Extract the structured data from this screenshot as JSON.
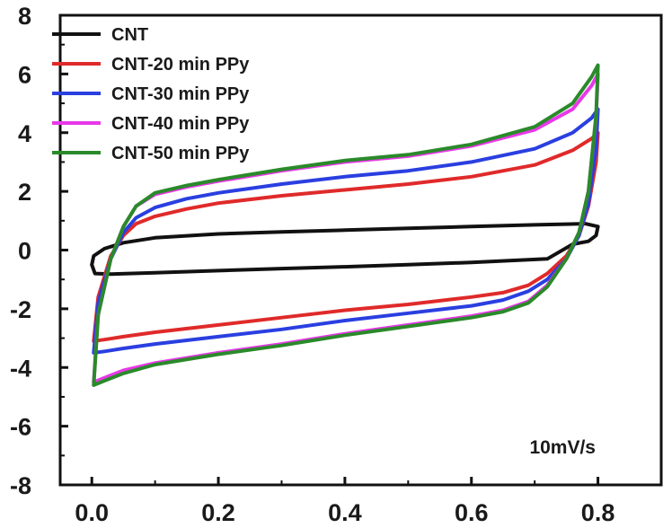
{
  "chart_data": {
    "type": "line",
    "title": "",
    "xlabel": "",
    "ylabel": "",
    "xlim": [
      -0.05,
      0.9
    ],
    "ylim": [
      -8,
      8
    ],
    "x_ticks": [
      "0.0",
      "0.2",
      "0.4",
      "0.6",
      "0.8"
    ],
    "x_tick_values": [
      0.0,
      0.2,
      0.4,
      0.6,
      0.8
    ],
    "y_ticks": [
      "8",
      "6",
      "4",
      "2",
      "0",
      "-2",
      "-4",
      "-6",
      "-8"
    ],
    "y_tick_values": [
      8,
      6,
      4,
      2,
      0,
      -2,
      -4,
      -6,
      -8
    ],
    "grid": false,
    "legend_position": "top-left",
    "annotation": "10mV/s",
    "series": [
      {
        "name": "CNT",
        "color": "#111111",
        "points": [
          [
            0.0,
            -0.5
          ],
          [
            0.003,
            -0.2
          ],
          [
            0.02,
            0.05
          ],
          [
            0.05,
            0.25
          ],
          [
            0.1,
            0.42
          ],
          [
            0.2,
            0.55
          ],
          [
            0.3,
            0.62
          ],
          [
            0.4,
            0.68
          ],
          [
            0.5,
            0.74
          ],
          [
            0.6,
            0.8
          ],
          [
            0.7,
            0.86
          ],
          [
            0.78,
            0.9
          ],
          [
            0.8,
            0.8
          ],
          [
            0.797,
            0.5
          ],
          [
            0.785,
            0.3
          ],
          [
            0.76,
            0.2
          ],
          [
            0.72,
            -0.3
          ],
          [
            0.6,
            -0.42
          ],
          [
            0.5,
            -0.5
          ],
          [
            0.4,
            -0.57
          ],
          [
            0.3,
            -0.63
          ],
          [
            0.2,
            -0.7
          ],
          [
            0.1,
            -0.77
          ],
          [
            0.03,
            -0.82
          ],
          [
            0.005,
            -0.8
          ],
          [
            0.0,
            -0.5
          ]
        ]
      },
      {
        "name": "CNT-20 min PPy",
        "color": "#e02a2a",
        "points": [
          [
            0.003,
            -3.1
          ],
          [
            0.01,
            -1.6
          ],
          [
            0.03,
            -0.2
          ],
          [
            0.05,
            0.5
          ],
          [
            0.07,
            0.9
          ],
          [
            0.1,
            1.15
          ],
          [
            0.15,
            1.4
          ],
          [
            0.2,
            1.6
          ],
          [
            0.3,
            1.85
          ],
          [
            0.4,
            2.05
          ],
          [
            0.5,
            2.25
          ],
          [
            0.6,
            2.5
          ],
          [
            0.7,
            2.9
          ],
          [
            0.76,
            3.4
          ],
          [
            0.79,
            3.8
          ],
          [
            0.8,
            4.0
          ],
          [
            0.797,
            3.0
          ],
          [
            0.785,
            1.5
          ],
          [
            0.77,
            0.5
          ],
          [
            0.75,
            -0.2
          ],
          [
            0.72,
            -0.8
          ],
          [
            0.69,
            -1.2
          ],
          [
            0.65,
            -1.45
          ],
          [
            0.6,
            -1.6
          ],
          [
            0.5,
            -1.85
          ],
          [
            0.4,
            -2.05
          ],
          [
            0.3,
            -2.3
          ],
          [
            0.2,
            -2.55
          ],
          [
            0.1,
            -2.8
          ],
          [
            0.05,
            -2.95
          ],
          [
            0.02,
            -3.05
          ],
          [
            0.003,
            -3.1
          ]
        ]
      },
      {
        "name": "CNT-30 min PPy",
        "color": "#2a3fe0",
        "points": [
          [
            0.003,
            -3.5
          ],
          [
            0.01,
            -1.8
          ],
          [
            0.03,
            -0.3
          ],
          [
            0.05,
            0.6
          ],
          [
            0.07,
            1.1
          ],
          [
            0.1,
            1.45
          ],
          [
            0.15,
            1.75
          ],
          [
            0.2,
            1.95
          ],
          [
            0.3,
            2.25
          ],
          [
            0.4,
            2.5
          ],
          [
            0.5,
            2.7
          ],
          [
            0.6,
            3.0
          ],
          [
            0.7,
            3.45
          ],
          [
            0.76,
            4.0
          ],
          [
            0.79,
            4.5
          ],
          [
            0.8,
            4.8
          ],
          [
            0.797,
            3.5
          ],
          [
            0.785,
            1.6
          ],
          [
            0.77,
            0.5
          ],
          [
            0.75,
            -0.3
          ],
          [
            0.72,
            -1.0
          ],
          [
            0.69,
            -1.4
          ],
          [
            0.65,
            -1.7
          ],
          [
            0.6,
            -1.9
          ],
          [
            0.5,
            -2.15
          ],
          [
            0.4,
            -2.4
          ],
          [
            0.3,
            -2.7
          ],
          [
            0.2,
            -2.95
          ],
          [
            0.1,
            -3.2
          ],
          [
            0.05,
            -3.35
          ],
          [
            0.02,
            -3.45
          ],
          [
            0.003,
            -3.5
          ]
        ]
      },
      {
        "name": "CNT-40 min PPy",
        "color": "#e838e8",
        "points": [
          [
            0.003,
            -4.5
          ],
          [
            0.01,
            -2.2
          ],
          [
            0.03,
            -0.3
          ],
          [
            0.05,
            0.8
          ],
          [
            0.07,
            1.5
          ],
          [
            0.1,
            1.9
          ],
          [
            0.15,
            2.15
          ],
          [
            0.2,
            2.35
          ],
          [
            0.3,
            2.7
          ],
          [
            0.4,
            3.0
          ],
          [
            0.5,
            3.2
          ],
          [
            0.6,
            3.55
          ],
          [
            0.7,
            4.1
          ],
          [
            0.76,
            4.8
          ],
          [
            0.79,
            5.6
          ],
          [
            0.8,
            6.0
          ],
          [
            0.797,
            4.5
          ],
          [
            0.785,
            2.0
          ],
          [
            0.77,
            0.6
          ],
          [
            0.75,
            -0.3
          ],
          [
            0.72,
            -1.2
          ],
          [
            0.69,
            -1.75
          ],
          [
            0.65,
            -2.05
          ],
          [
            0.6,
            -2.25
          ],
          [
            0.5,
            -2.55
          ],
          [
            0.4,
            -2.85
          ],
          [
            0.3,
            -3.2
          ],
          [
            0.2,
            -3.5
          ],
          [
            0.1,
            -3.85
          ],
          [
            0.05,
            -4.1
          ],
          [
            0.02,
            -4.35
          ],
          [
            0.003,
            -4.5
          ]
        ]
      },
      {
        "name": "CNT-50 min PPy",
        "color": "#2a8a2a",
        "points": [
          [
            0.003,
            -4.6
          ],
          [
            0.01,
            -2.2
          ],
          [
            0.03,
            -0.3
          ],
          [
            0.05,
            0.8
          ],
          [
            0.07,
            1.5
          ],
          [
            0.1,
            1.95
          ],
          [
            0.15,
            2.2
          ],
          [
            0.2,
            2.4
          ],
          [
            0.3,
            2.75
          ],
          [
            0.4,
            3.05
          ],
          [
            0.5,
            3.25
          ],
          [
            0.6,
            3.6
          ],
          [
            0.7,
            4.2
          ],
          [
            0.76,
            5.0
          ],
          [
            0.79,
            5.9
          ],
          [
            0.8,
            6.3
          ],
          [
            0.797,
            4.6
          ],
          [
            0.785,
            2.0
          ],
          [
            0.77,
            0.6
          ],
          [
            0.75,
            -0.3
          ],
          [
            0.72,
            -1.25
          ],
          [
            0.69,
            -1.8
          ],
          [
            0.65,
            -2.1
          ],
          [
            0.6,
            -2.3
          ],
          [
            0.5,
            -2.6
          ],
          [
            0.4,
            -2.9
          ],
          [
            0.3,
            -3.25
          ],
          [
            0.2,
            -3.55
          ],
          [
            0.1,
            -3.9
          ],
          [
            0.05,
            -4.2
          ],
          [
            0.02,
            -4.45
          ],
          [
            0.003,
            -4.6
          ]
        ]
      }
    ]
  }
}
